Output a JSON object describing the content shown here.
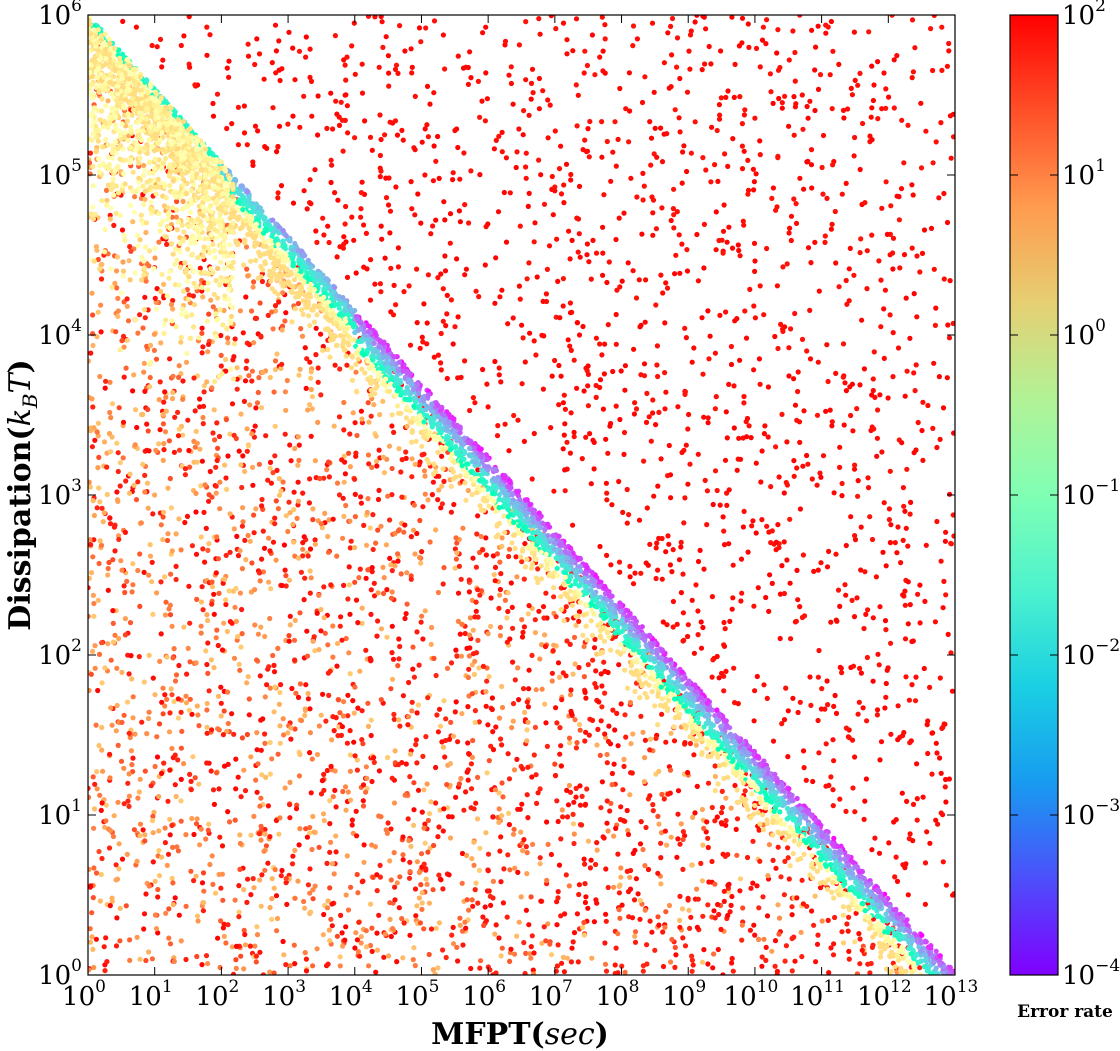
{
  "chart_data": {
    "type": "scatter",
    "title": "",
    "xlabel": "MFPT(sec)",
    "ylabel": "Dissipation(k_BT)",
    "xscale": "log",
    "yscale": "log",
    "xlim": [
      1,
      10000000000000.0
    ],
    "ylim": [
      1,
      1000000.0
    ],
    "x_ticks": [
      {
        "base": "10",
        "exp": "0"
      },
      {
        "base": "10",
        "exp": "1"
      },
      {
        "base": "10",
        "exp": "2"
      },
      {
        "base": "10",
        "exp": "3"
      },
      {
        "base": "10",
        "exp": "4"
      },
      {
        "base": "10",
        "exp": "5"
      },
      {
        "base": "10",
        "exp": "6"
      },
      {
        "base": "10",
        "exp": "7"
      },
      {
        "base": "10",
        "exp": "8"
      },
      {
        "base": "10",
        "exp": "9"
      },
      {
        "base": "10",
        "exp": "10"
      },
      {
        "base": "10",
        "exp": "11"
      },
      {
        "base": "10",
        "exp": "12"
      },
      {
        "base": "10",
        "exp": "13"
      }
    ],
    "y_ticks": [
      {
        "base": "10",
        "exp": "0"
      },
      {
        "base": "10",
        "exp": "1"
      },
      {
        "base": "10",
        "exp": "2"
      },
      {
        "base": "10",
        "exp": "3"
      },
      {
        "base": "10",
        "exp": "4"
      },
      {
        "base": "10",
        "exp": "5"
      },
      {
        "base": "10",
        "exp": "6"
      }
    ],
    "colorbar": {
      "label": "Error rate",
      "scale": "log",
      "range": [
        0.0001,
        100
      ],
      "colormap": "rainbow",
      "ticks": [
        {
          "base": "10",
          "exp": "−4"
        },
        {
          "base": "10",
          "exp": "−3"
        },
        {
          "base": "10",
          "exp": "−2"
        },
        {
          "base": "10",
          "exp": "−1"
        },
        {
          "base": "10",
          "exp": "0"
        },
        {
          "base": "10",
          "exp": "1"
        },
        {
          "base": "10",
          "exp": "2"
        }
      ]
    },
    "point_count_approx": 12000,
    "regions": [
      {
        "description": "upper-right region above the boundary",
        "log10_error_rate": 2
      },
      {
        "description": "optimal frontier band along log10(Dissipation) ≈ 6 − 0.45·log10(MFPT)",
        "log10_error_rate_range": [
          -4,
          -1
        ]
      },
      {
        "description": "top-left corner near MFPT 1–10 sec",
        "log10_error_rate_range": [
          -1,
          0
        ]
      },
      {
        "description": "lower-left region below the frontier",
        "log10_error_rate_range": [
          0,
          2
        ]
      }
    ],
    "grid": false,
    "legend": "colorbar-right"
  }
}
